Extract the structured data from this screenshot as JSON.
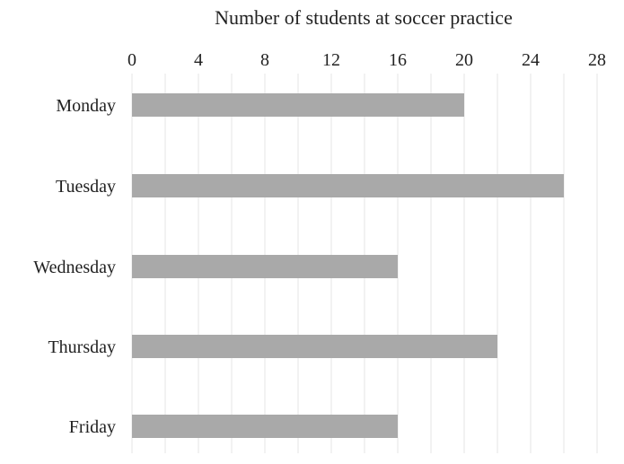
{
  "chart_data": {
    "type": "bar",
    "orientation": "horizontal",
    "title": "Number of students at soccer practice",
    "xlabel": "",
    "ylabel": "",
    "categories": [
      "Monday",
      "Tuesday",
      "Wednesday",
      "Thursday",
      "Friday"
    ],
    "values": [
      20,
      26,
      16,
      22,
      16
    ],
    "x_ticks": [
      "0",
      "4",
      "8",
      "12",
      "16",
      "20",
      "24",
      "28"
    ],
    "xlim": [
      0,
      28
    ],
    "x_axis_position": "top",
    "grid": true,
    "legend": "none",
    "colors": {
      "bar": "#a9a9a9",
      "grid": "#e4e4e4",
      "text": "#222222"
    }
  }
}
